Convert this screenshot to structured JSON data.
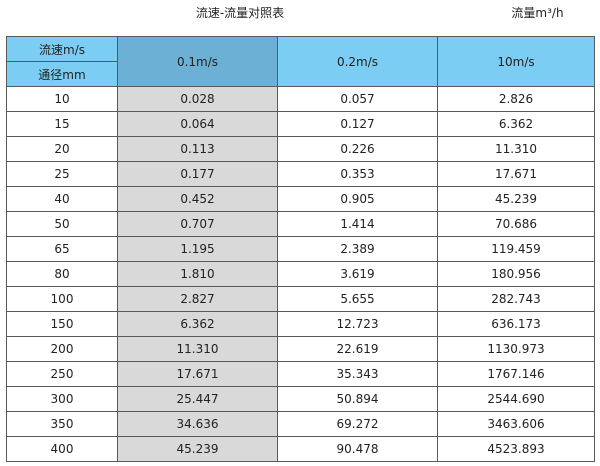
{
  "title": "流速-流量对照表",
  "unit_label": "流量m³/h",
  "colors": {
    "header": "#7ccdf3",
    "header_selected": "#6cb1d5",
    "highlight_column": "#d9d9d9",
    "border": "#5a5a5a"
  },
  "table": {
    "corner_top": "流速m/s",
    "corner_bottom": "通径mm",
    "columns": [
      "0.1m/s",
      "0.2m/s",
      "10m/s"
    ],
    "rows": [
      [
        "10",
        "0.028",
        "0.057",
        "2.826"
      ],
      [
        "15",
        "0.064",
        "0.127",
        "6.362"
      ],
      [
        "20",
        "0.113",
        "0.226",
        "11.310"
      ],
      [
        "25",
        "0.177",
        "0.353",
        "17.671"
      ],
      [
        "40",
        "0.452",
        "0.905",
        "45.239"
      ],
      [
        "50",
        "0.707",
        "1.414",
        "70.686"
      ],
      [
        "65",
        "1.195",
        "2.389",
        "119.459"
      ],
      [
        "80",
        "1.810",
        "3.619",
        "180.956"
      ],
      [
        "100",
        "2.827",
        "5.655",
        "282.743"
      ],
      [
        "150",
        "6.362",
        "12.723",
        "636.173"
      ],
      [
        "200",
        "11.310",
        "22.619",
        "1130.973"
      ],
      [
        "250",
        "17.671",
        "35.343",
        "1767.146"
      ],
      [
        "300",
        "25.447",
        "50.894",
        "2544.690"
      ],
      [
        "350",
        "34.636",
        "69.272",
        "3463.606"
      ],
      [
        "400",
        "45.239",
        "90.478",
        "4523.893"
      ]
    ]
  }
}
